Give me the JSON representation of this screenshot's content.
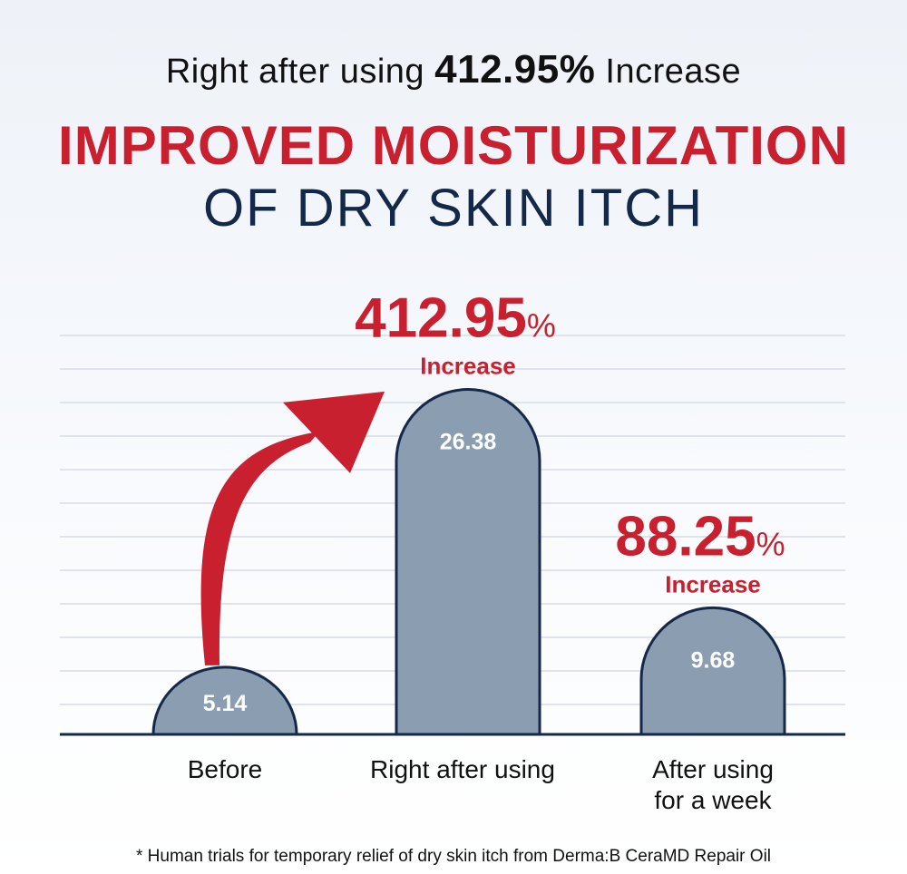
{
  "header": {
    "line1_prefix": "Right after using",
    "line1_value": "412.95%",
    "line1_suffix": "Increase",
    "title_red": "IMPROVED MOISTURIZATION",
    "title_navy": "OF DRY SKIN ITCH"
  },
  "colors": {
    "bar_fill": "#8b9db1",
    "bar_stroke": "#15284a",
    "accent_red": "#c8202f",
    "navy": "#14294a",
    "grid": "#dfe4ec"
  },
  "chart_data": {
    "type": "bar",
    "categories": [
      "Before",
      "Right after using",
      "After using for a week"
    ],
    "category_lines": [
      [
        "Before"
      ],
      [
        "Right after using"
      ],
      [
        "After using",
        "for a week"
      ]
    ],
    "values": [
      5.14,
      26.38,
      9.68
    ],
    "value_labels": [
      "5.14",
      "26.38",
      "9.68"
    ],
    "annotations": [
      {
        "category_index": 1,
        "number": "412.95",
        "unit": "%",
        "label": "Increase"
      },
      {
        "category_index": 2,
        "number": "88.25",
        "unit": "%",
        "label": "Increase"
      }
    ],
    "arrow": {
      "from_index": 0,
      "to_index": 1
    },
    "ylim": [
      0,
      30
    ],
    "grid": true,
    "xlabel": "",
    "ylabel": ""
  },
  "footnote": "* Human trials for temporary relief of dry skin itch from Derma:B CeraMD Repair Oil"
}
